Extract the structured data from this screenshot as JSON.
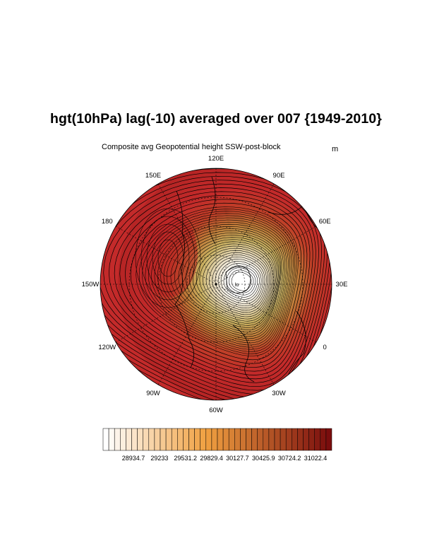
{
  "title": "hgt(10hPa) lag(-10) averaged over 007 {1949-2010}",
  "subtitle": "Composite avg Geopotential height SSW-post-block",
  "units": "m",
  "map": {
    "projection": "north-polar-stereographic",
    "field": "geopotential height 10hPa",
    "lon_labels": [
      "120E",
      "90E",
      "60E",
      "30E",
      "0",
      "30W",
      "60W",
      "90W",
      "120W",
      "150W",
      "180",
      "150E"
    ],
    "low_center_label": "lo"
  },
  "colorbar": {
    "tick_labels": [
      "28934.7",
      "29233",
      "29531.2",
      "29829.4",
      "30127.7",
      "30425.9",
      "30724.2",
      "31022.4"
    ],
    "color_low": "#ffffff",
    "color_mid": "#f0a040",
    "color_high": "#7a0d0d",
    "accent_fill": "#c32a2a"
  }
}
